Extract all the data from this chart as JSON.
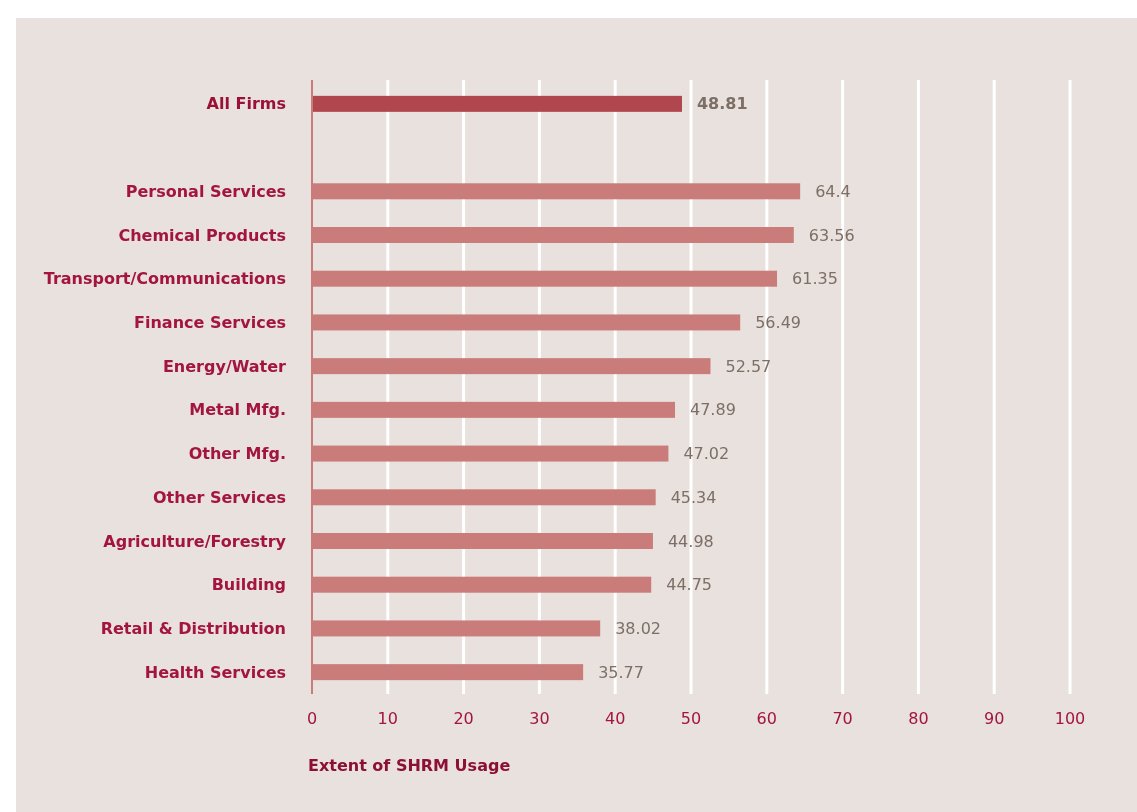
{
  "chart_data": {
    "type": "bar",
    "orientation": "horizontal",
    "xlabel": "Extent of SHRM Usage",
    "categories": [
      "All Firms",
      null,
      "Personal Services",
      "Chemical Products",
      "Transport/Communications",
      "Finance Services",
      "Energy/Water",
      "Metal Mfg.",
      "Other Mfg.",
      "Other Services",
      "Agriculture/Forestry",
      "Building",
      "Retail & Distribution",
      "Health Services"
    ],
    "values": [
      48.81,
      null,
      64.4,
      63.56,
      61.35,
      56.49,
      52.57,
      47.89,
      47.02,
      45.34,
      44.98,
      44.75,
      38.02,
      35.77
    ],
    "colors": [
      "#b0474f",
      "#c97c7a",
      "#c97c7a",
      "#c97c7a",
      "#c97c7a",
      "#c97c7a",
      "#c97c7a",
      "#c97c7a",
      "#c97c7a",
      "#c97c7a",
      "#c97c7a",
      "#c97c7a",
      "#c97c7a",
      "#c97c7a"
    ],
    "xlim": [
      0,
      100
    ],
    "xticks": [
      0,
      10,
      20,
      30,
      40,
      50,
      60,
      70,
      80,
      90,
      100
    ],
    "grid": "x",
    "data_labels": true
  }
}
